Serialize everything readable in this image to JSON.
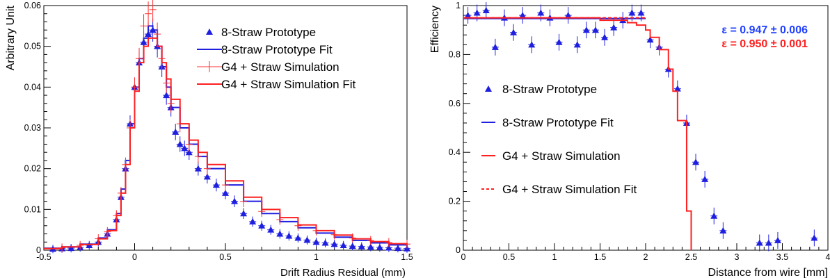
{
  "chart_data": [
    {
      "type": "scatter",
      "title": "",
      "xlabel": "Drift Radius Residual (mm)",
      "ylabel": "Arbitrary Unit",
      "xlim": [
        -0.5,
        1.5
      ],
      "ylim": [
        0,
        0.06
      ],
      "xticks": [
        "-0.5",
        "0",
        "0.5",
        "1",
        "1.5"
      ],
      "yticks": [
        "0",
        "0.01",
        "0.02",
        "0.03",
        "0.04",
        "0.05",
        "0.06"
      ],
      "grid": false,
      "legend_position": "top-right",
      "series": [
        {
          "name": "8-Straw Prototype",
          "color": "#1f1fe0",
          "marker": "triangle",
          "style": "markers",
          "x": [
            -0.45,
            -0.4,
            -0.35,
            -0.3,
            -0.25,
            -0.2,
            -0.15,
            -0.1,
            -0.075,
            -0.05,
            -0.025,
            0,
            0.025,
            0.05,
            0.075,
            0.1,
            0.125,
            0.15,
            0.175,
            0.2,
            0.225,
            0.25,
            0.275,
            0.3,
            0.35,
            0.4,
            0.45,
            0.5,
            0.55,
            0.6,
            0.65,
            0.7,
            0.75,
            0.8,
            0.85,
            0.9,
            0.95,
            1,
            1.05,
            1.1,
            1.15,
            1.2,
            1.25,
            1.3,
            1.35,
            1.4,
            1.45,
            1.5
          ],
          "y": [
            0.0003,
            0.0004,
            0.0005,
            0.0007,
            0.0012,
            0.002,
            0.004,
            0.0075,
            0.013,
            0.02,
            0.031,
            0.04,
            0.046,
            0.051,
            0.053,
            0.054,
            0.05,
            0.045,
            0.038,
            0.035,
            0.029,
            0.026,
            0.025,
            0.024,
            0.02,
            0.018,
            0.016,
            0.014,
            0.012,
            0.009,
            0.007,
            0.006,
            0.005,
            0.004,
            0.0035,
            0.003,
            0.0025,
            0.002,
            0.0018,
            0.0015,
            0.0012,
            0.001,
            0.0009,
            0.0008,
            0.0007,
            0.0006,
            0.0005,
            0.0004
          ]
        },
        {
          "name": "8-Straw Prototype Fit",
          "color": "#1f1fe0",
          "style": "step",
          "x": [
            -0.5,
            -0.4,
            -0.3,
            -0.2,
            -0.15,
            -0.1,
            -0.075,
            -0.05,
            -0.025,
            0,
            0.025,
            0.05,
            0.075,
            0.1,
            0.125,
            0.15,
            0.175,
            0.2,
            0.25,
            0.3,
            0.35,
            0.4,
            0.5,
            0.6,
            0.7,
            0.8,
            0.9,
            1,
            1.1,
            1.2,
            1.3,
            1.4,
            1.5
          ],
          "y": [
            0.0005,
            0.0008,
            0.0015,
            0.003,
            0.005,
            0.009,
            0.015,
            0.022,
            0.031,
            0.04,
            0.047,
            0.052,
            0.055,
            0.054,
            0.05,
            0.045,
            0.04,
            0.035,
            0.03,
            0.026,
            0.023,
            0.02,
            0.016,
            0.012,
            0.009,
            0.007,
            0.0055,
            0.0042,
            0.0032,
            0.0024,
            0.0018,
            0.0013,
            0.001
          ]
        },
        {
          "name": "G4 + Straw Simulation",
          "color": "#ff3030",
          "marker": "cross",
          "style": "markers",
          "x": [
            -0.4,
            -0.3,
            -0.2,
            -0.15,
            -0.1,
            -0.075,
            -0.05,
            -0.025,
            0,
            0.025,
            0.05,
            0.075,
            0.1,
            0.125,
            0.15,
            0.175,
            0.2,
            0.25,
            0.3,
            0.35,
            0.4,
            0.5,
            0.6,
            0.7,
            0.8,
            0.9,
            1,
            1.1,
            1.2,
            1.3,
            1.4,
            1.5
          ],
          "y": [
            0.0006,
            0.0012,
            0.0028,
            0.0045,
            0.0085,
            0.014,
            0.021,
            0.03,
            0.04,
            0.047,
            0.055,
            0.058,
            0.059,
            0.053,
            0.047,
            0.041,
            0.036,
            0.031,
            0.026,
            0.023,
            0.02,
            0.016,
            0.012,
            0.0095,
            0.0075,
            0.006,
            0.0048,
            0.0038,
            0.003,
            0.0024,
            0.0019,
            0.0015
          ]
        },
        {
          "name": "G4 + Straw Simulation Fit",
          "color": "#ff2020",
          "style": "step",
          "x": [
            -0.5,
            -0.4,
            -0.3,
            -0.2,
            -0.15,
            -0.1,
            -0.075,
            -0.05,
            -0.025,
            0,
            0.025,
            0.05,
            0.075,
            0.1,
            0.125,
            0.15,
            0.175,
            0.2,
            0.25,
            0.3,
            0.35,
            0.4,
            0.5,
            0.6,
            0.7,
            0.8,
            0.9,
            1,
            1.1,
            1.2,
            1.3,
            1.4,
            1.5
          ],
          "y": [
            0.0004,
            0.0008,
            0.0014,
            0.0028,
            0.0048,
            0.0085,
            0.014,
            0.021,
            0.03,
            0.039,
            0.046,
            0.05,
            0.052,
            0.052,
            0.05,
            0.046,
            0.042,
            0.037,
            0.031,
            0.027,
            0.024,
            0.021,
            0.017,
            0.013,
            0.01,
            0.008,
            0.0062,
            0.0048,
            0.0037,
            0.0028,
            0.0021,
            0.0016,
            0.0012
          ]
        }
      ]
    },
    {
      "type": "scatter",
      "title": "",
      "xlabel": "Distance from wire [mm]",
      "ylabel": "Efficiency",
      "xlim": [
        0,
        4
      ],
      "ylim": [
        0,
        1
      ],
      "xticks": [
        "0",
        "0.5",
        "1",
        "1.5",
        "2",
        "2.5",
        "3",
        "3.5",
        "4"
      ],
      "yticks": [
        "0",
        "0.2",
        "0.4",
        "0.6",
        "0.8",
        "1"
      ],
      "grid": false,
      "legend_position": "left",
      "annotations": [
        {
          "text": "ε = 0.947  ± 0.006",
          "color": "#2040ff"
        },
        {
          "text": "ε = 0.950  ± 0.001",
          "color": "#ff2020"
        }
      ],
      "series": [
        {
          "name": "8-Straw Prototype",
          "color": "#1f1fe0",
          "marker": "triangle",
          "style": "markers",
          "x": [
            0.05,
            0.15,
            0.25,
            0.35,
            0.45,
            0.55,
            0.65,
            0.75,
            0.85,
            0.95,
            1.05,
            1.15,
            1.25,
            1.35,
            1.45,
            1.55,
            1.65,
            1.75,
            1.85,
            1.95,
            2.05,
            2.15,
            2.25,
            2.35,
            2.45,
            2.55,
            2.65,
            2.75,
            2.85,
            3.25,
            3.35,
            3.45,
            3.85
          ],
          "y": [
            0.96,
            0.97,
            0.98,
            0.83,
            0.95,
            0.89,
            0.96,
            0.84,
            0.97,
            0.95,
            0.85,
            0.96,
            0.84,
            0.9,
            0.9,
            0.87,
            0.91,
            0.94,
            0.97,
            0.97,
            0.86,
            0.83,
            0.74,
            0.66,
            0.52,
            0.36,
            0.29,
            0.14,
            0.08,
            0.03,
            0.03,
            0.04,
            0.05
          ]
        },
        {
          "name": "8-Straw Prototype Fit",
          "color": "#1f1fe0",
          "style": "flat",
          "x": [
            0,
            2
          ],
          "y": [
            0.947,
            0.947
          ]
        },
        {
          "name": "G4 + Straw Simulation",
          "color": "#ff2020",
          "style": "step",
          "x": [
            0,
            0.5,
            1,
            1.5,
            1.8,
            1.9,
            2.0,
            2.05,
            2.15,
            2.25,
            2.3,
            2.35,
            2.45,
            2.5
          ],
          "y": [
            0.95,
            0.95,
            0.95,
            0.94,
            0.93,
            0.92,
            0.9,
            0.87,
            0.82,
            0.74,
            0.65,
            0.53,
            0.16,
            0
          ]
        },
        {
          "name": "G4 + Straw Simulation Fit",
          "color": "#ff2020",
          "style": "dashed",
          "x": [
            0,
            2
          ],
          "y": [
            0.95,
            0.95
          ]
        }
      ]
    }
  ]
}
